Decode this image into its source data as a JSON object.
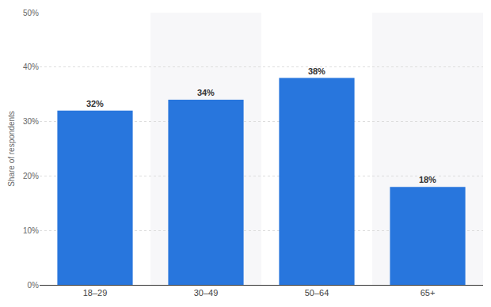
{
  "chart_data": {
    "type": "bar",
    "y_label": "Share of respondents",
    "categories": [
      "18–29",
      "30–49",
      "50–64",
      "65+"
    ],
    "values": [
      32,
      34,
      38,
      18
    ],
    "value_labels": [
      "32%",
      "34%",
      "38%",
      "18%"
    ],
    "color": "#2876dd",
    "ylim": [
      0,
      50
    ],
    "yticks": [
      {
        "value": 0,
        "label": "0%"
      },
      {
        "value": 10,
        "label": "10%"
      },
      {
        "value": 20,
        "label": "20%"
      },
      {
        "value": 30,
        "label": "30%"
      },
      {
        "value": 40,
        "label": "40%"
      },
      {
        "value": 50,
        "label": "50%"
      }
    ],
    "grid": true,
    "data_labels": true
  }
}
